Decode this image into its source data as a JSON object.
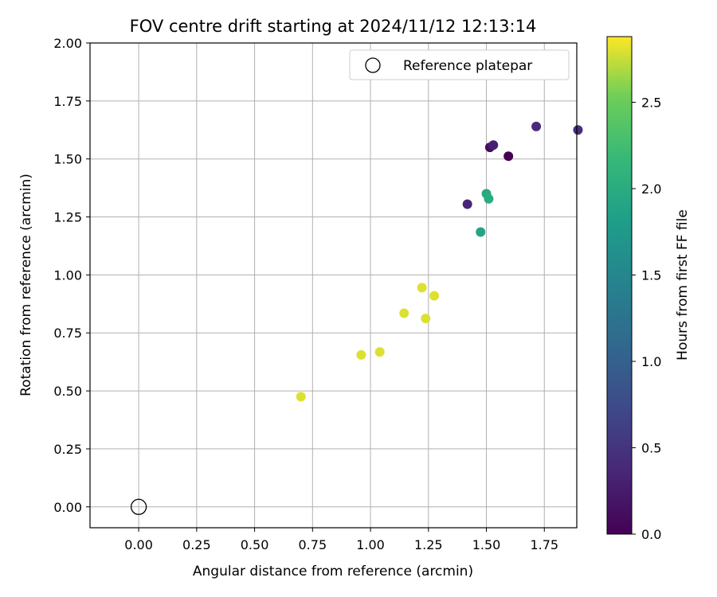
{
  "chart_data": {
    "type": "scatter",
    "title": "FOV centre drift starting at 2024/11/12 12:13:14",
    "xlabel": "Angular distance from reference (arcmin)",
    "ylabel": "Rotation from reference (arcmin)",
    "xlim": [
      -0.21,
      1.89
    ],
    "ylim": [
      -0.09,
      2.0
    ],
    "grid": true,
    "x_ticks": [
      "0.00",
      "0.25",
      "0.50",
      "0.75",
      "1.00",
      "1.25",
      "1.50",
      "1.75"
    ],
    "y_ticks": [
      "0.00",
      "0.25",
      "0.50",
      "0.75",
      "1.00",
      "1.25",
      "1.50",
      "1.75",
      "2.00"
    ],
    "legend": {
      "position": "top-right",
      "label": "Reference platepar"
    },
    "reference_point": {
      "x": 0.0,
      "y": 0.0
    },
    "colorbar": {
      "label": "Hours from first FF file",
      "range": [
        0.0,
        2.88
      ],
      "ticks": [
        "0.0",
        "0.5",
        "1.0",
        "1.5",
        "2.0",
        "2.5"
      ],
      "colormap": "viridis"
    },
    "points": [
      {
        "x": 1.595,
        "y": 1.512,
        "hours": 0.0
      },
      {
        "x": 1.515,
        "y": 1.55,
        "hours": 0.1
      },
      {
        "x": 1.53,
        "y": 1.56,
        "hours": 0.3
      },
      {
        "x": 1.418,
        "y": 1.305,
        "hours": 0.35
      },
      {
        "x": 1.715,
        "y": 1.64,
        "hours": 0.4
      },
      {
        "x": 1.895,
        "y": 1.625,
        "hours": 0.45
      },
      {
        "x": 1.475,
        "y": 1.185,
        "hours": 1.9
      },
      {
        "x": 1.5,
        "y": 1.35,
        "hours": 1.95
      },
      {
        "x": 1.51,
        "y": 1.328,
        "hours": 2.0
      },
      {
        "x": 0.7,
        "y": 0.475,
        "hours": 2.8
      },
      {
        "x": 0.96,
        "y": 0.655,
        "hours": 2.8
      },
      {
        "x": 1.04,
        "y": 0.668,
        "hours": 2.8
      },
      {
        "x": 1.145,
        "y": 0.835,
        "hours": 2.8
      },
      {
        "x": 1.222,
        "y": 0.945,
        "hours": 2.8
      },
      {
        "x": 1.238,
        "y": 0.812,
        "hours": 2.8
      },
      {
        "x": 1.275,
        "y": 0.91,
        "hours": 2.8
      }
    ]
  }
}
